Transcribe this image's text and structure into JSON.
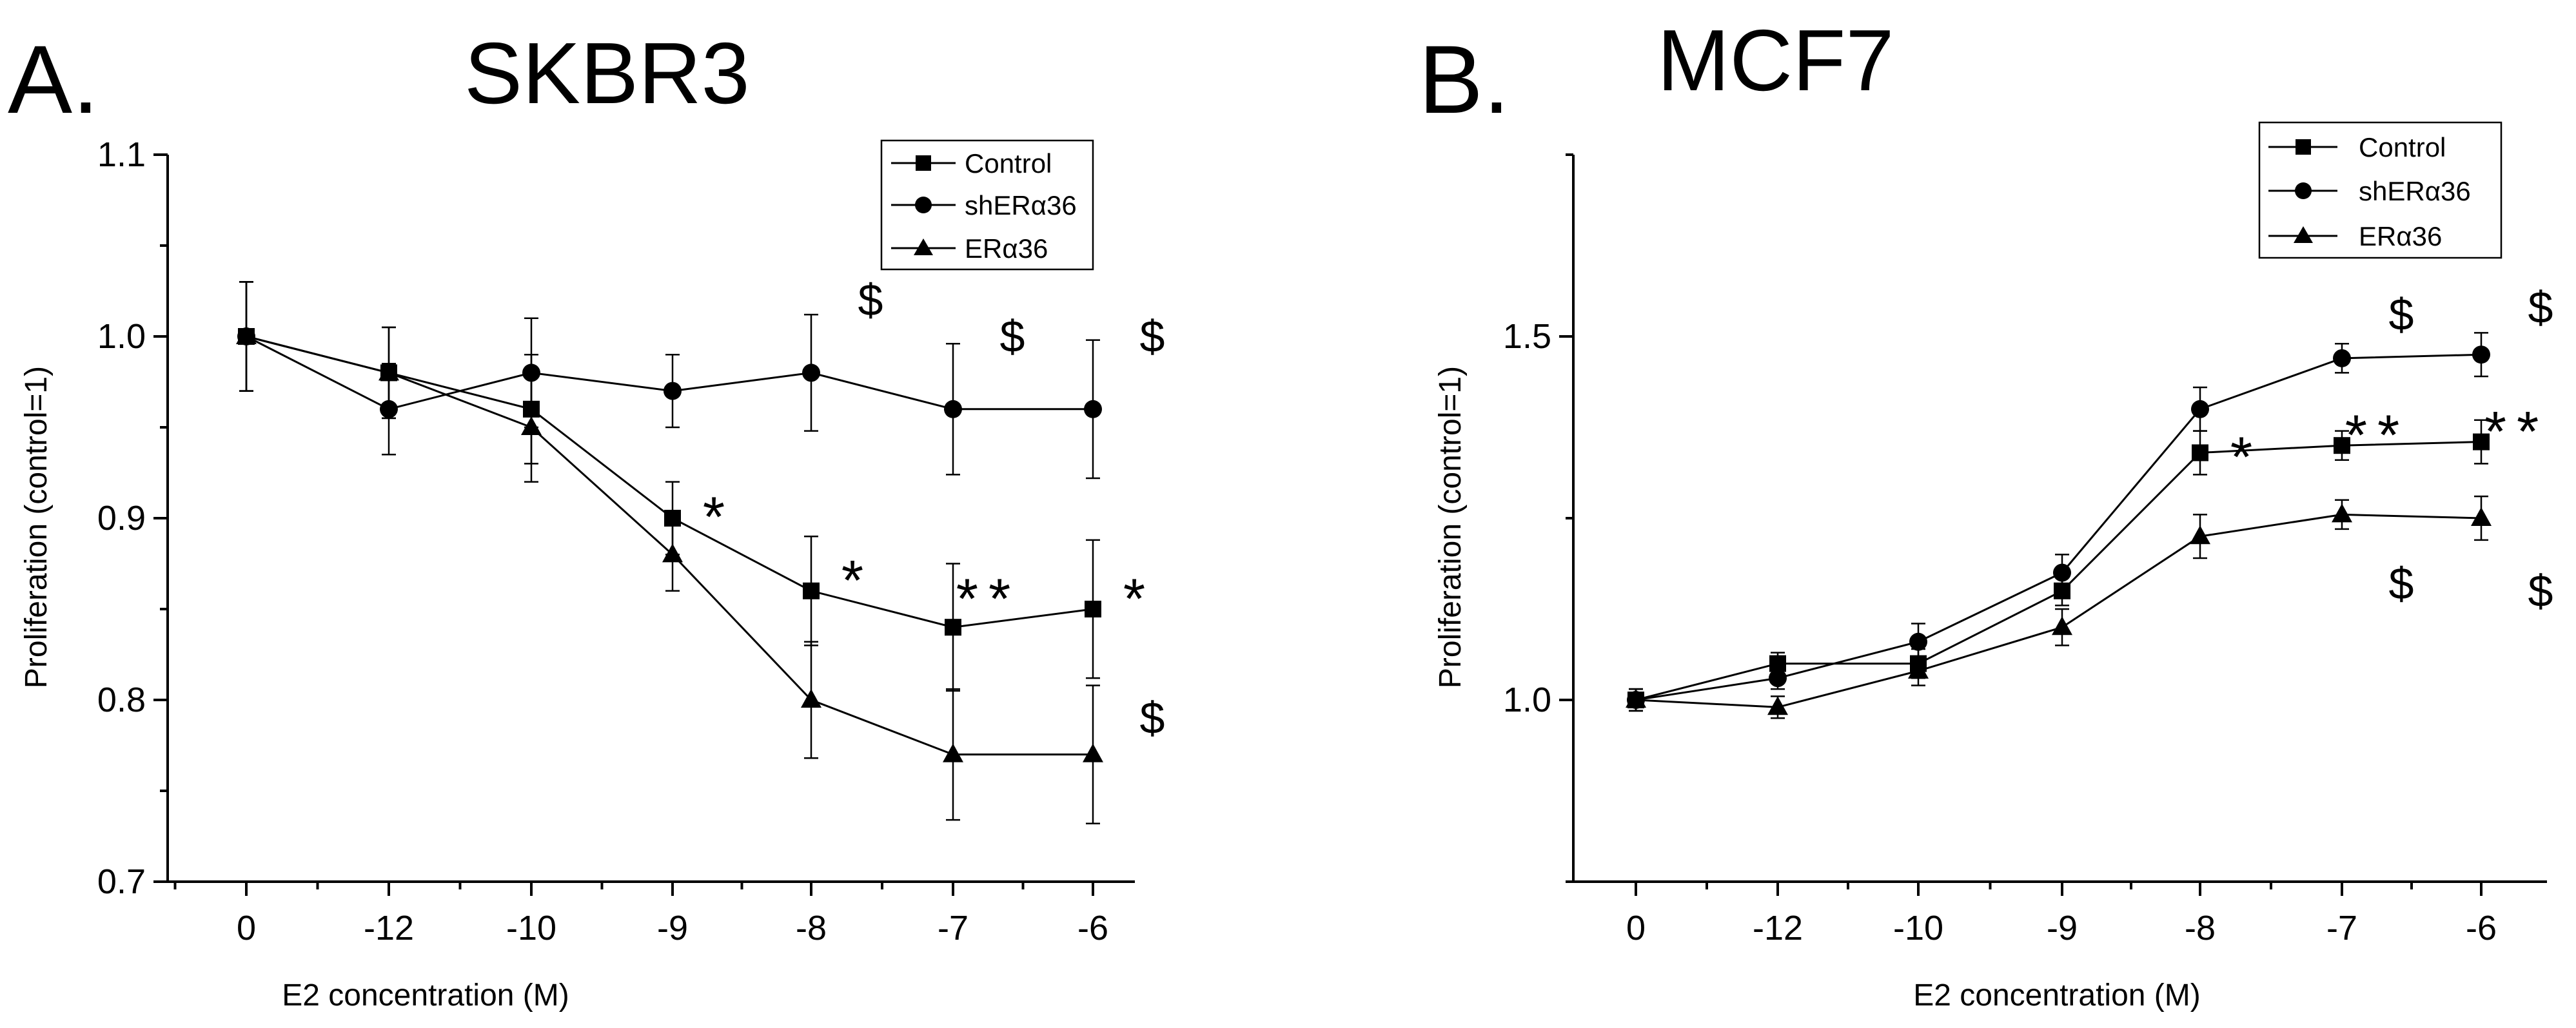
{
  "chart_data": [
    {
      "type": "line",
      "panel_label": "A.",
      "title": "SKBR3",
      "xlabel": "E2 concentration (M)",
      "ylabel": "Proliferation (control=1)",
      "categories": [
        "0",
        "-12",
        "-10",
        "-9",
        "-8",
        "-7",
        "-6"
      ],
      "ylim": [
        0.7,
        1.1
      ],
      "yticks": [
        0.7,
        0.8,
        0.9,
        1.0,
        1.1
      ],
      "ytick_labels": [
        "0.7",
        "0.8",
        "0.9",
        "1.0",
        "1.1"
      ],
      "legend_position": "top-right",
      "series": [
        {
          "name": "Control",
          "marker": "square",
          "values": [
            1.0,
            0.98,
            0.96,
            0.9,
            0.86,
            0.84,
            0.85
          ],
          "errors": [
            0.03,
            0.025,
            0.03,
            0.02,
            0.03,
            0.035,
            0.038
          ]
        },
        {
          "name": "shERα36",
          "marker": "circle",
          "values": [
            1.0,
            0.96,
            0.98,
            0.97,
            0.98,
            0.96,
            0.96
          ],
          "errors": [
            0.03,
            0.025,
            0.03,
            0.02,
            0.032,
            0.036,
            0.038
          ]
        },
        {
          "name": "ERα36",
          "marker": "triangle",
          "values": [
            1.0,
            0.98,
            0.95,
            0.88,
            0.8,
            0.77,
            0.77
          ],
          "errors": [
            0.03,
            0.025,
            0.03,
            0.02,
            0.032,
            0.036,
            0.038
          ]
        }
      ],
      "annotations": [
        {
          "text": "$",
          "category_index": 4,
          "value": 1.02
        },
        {
          "text": "$",
          "category_index": 5,
          "value": 1.0
        },
        {
          "text": "$",
          "category_index": 6,
          "value": 1.0
        },
        {
          "text": "*",
          "category_index": 3,
          "value": 0.905
        },
        {
          "text": "*",
          "category_index": 4,
          "value": 0.87
        },
        {
          "text": "**",
          "category_index": 5,
          "value": 0.86
        },
        {
          "text": "*",
          "category_index": 6,
          "value": 0.86
        },
        {
          "text": "$",
          "category_index": 6,
          "value": 0.79
        }
      ]
    },
    {
      "type": "line",
      "panel_label": "B.",
      "title": "MCF7",
      "xlabel": "E2 concentration (M)",
      "ylabel": "Proliferation (control=1)",
      "categories": [
        "0",
        "-12",
        "-10",
        "-9",
        "-8",
        "-7",
        "-6"
      ],
      "ylim": [
        0.75,
        1.75
      ],
      "yticks": [
        1.0,
        1.5
      ],
      "ytick_labels": [
        "1.0",
        "1.5"
      ],
      "legend_position": "top-right",
      "series": [
        {
          "name": "Control",
          "marker": "square",
          "values": [
            1.0,
            1.05,
            1.05,
            1.15,
            1.34,
            1.35,
            1.355
          ],
          "errors": [
            0.015,
            0.015,
            0.02,
            0.02,
            0.03,
            0.02,
            0.03
          ]
        },
        {
          "name": "shERα36",
          "marker": "circle",
          "values": [
            1.0,
            1.03,
            1.08,
            1.175,
            1.4,
            1.47,
            1.475
          ],
          "errors": [
            0.015,
            0.015,
            0.025,
            0.025,
            0.03,
            0.02,
            0.03
          ]
        },
        {
          "name": "ERα36",
          "marker": "triangle",
          "values": [
            1.0,
            0.99,
            1.04,
            1.1,
            1.225,
            1.255,
            1.25
          ],
          "errors": [
            0.015,
            0.015,
            0.02,
            0.025,
            0.03,
            0.02,
            0.03
          ]
        }
      ],
      "annotations": [
        {
          "text": "$",
          "category_index": 5,
          "value": 1.53
        },
        {
          "text": "$",
          "category_index": 6,
          "value": 1.54
        },
        {
          "text": "*",
          "category_index": 4,
          "value": 1.345
        },
        {
          "text": "**",
          "category_index": 5,
          "value": 1.375
        },
        {
          "text": "**",
          "category_index": 6,
          "value": 1.38
        },
        {
          "text": "$",
          "category_index": 5,
          "value": 1.16
        },
        {
          "text": "$",
          "category_index": 6,
          "value": 1.15
        }
      ]
    }
  ]
}
